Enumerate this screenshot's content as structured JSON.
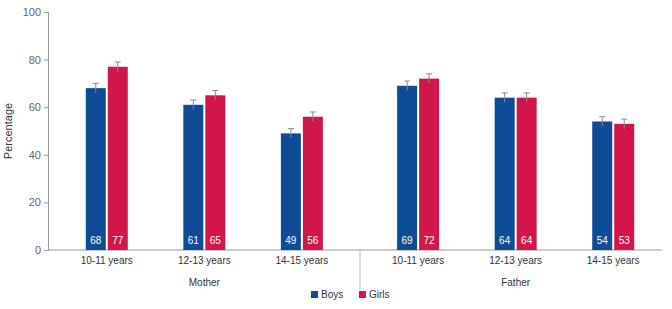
{
  "chart_data": {
    "type": "bar",
    "y_label": "Percentage",
    "categories": [
      "10-11 years",
      "12-13 years",
      "14-15 years",
      "10-11 years",
      "12-13 years",
      "14-15 years"
    ],
    "category_groups": [
      "Mother",
      "Mother",
      "Mother",
      "Father",
      "Father",
      "Father"
    ],
    "series": [
      {
        "name": "Boys",
        "color": "#0e4c96",
        "values": [
          68,
          61,
          49,
          69,
          64,
          54
        ],
        "errors": [
          2,
          2,
          2,
          2,
          2,
          2
        ]
      },
      {
        "name": "Girls",
        "color": "#d1164c",
        "values": [
          77,
          65,
          56,
          72,
          64,
          53
        ],
        "errors": [
          2,
          2,
          2,
          2,
          2,
          2
        ]
      }
    ],
    "ylim": [
      0,
      100
    ],
    "yticks": [
      0,
      20,
      40,
      60,
      80,
      100
    ],
    "grid": false,
    "legend": "bottom",
    "data_labels": true
  }
}
